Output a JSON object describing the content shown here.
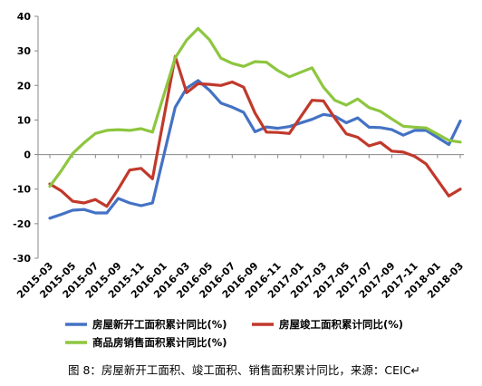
{
  "chart_data": {
    "type": "line",
    "y_ticks": [
      "40",
      "30",
      "20",
      "10",
      "0",
      "-10",
      "-20",
      "-30"
    ],
    "ylim": [
      -30,
      40
    ],
    "x_tick_labels": [
      "2015-03",
      "2015-05",
      "2015-07",
      "2015-09",
      "2015-11",
      "2016-01",
      "2016-03",
      "2016-05",
      "2016-07",
      "2016-09",
      "2016-11",
      "2017-01",
      "2017-03",
      "2017-05",
      "2017-07",
      "2017-09",
      "2017-11",
      "2018-01",
      "2018-03"
    ],
    "x": [
      "2015-03",
      "2015-04",
      "2015-05",
      "2015-06",
      "2015-07",
      "2015-08",
      "2015-09",
      "2015-10",
      "2015-11",
      "2015-12",
      "2016-01",
      "2016-02",
      "2016-03",
      "2016-04",
      "2016-05",
      "2016-06",
      "2016-07",
      "2016-08",
      "2016-09",
      "2016-10",
      "2016-11",
      "2016-12",
      "2017-01",
      "2017-02",
      "2017-03",
      "2017-04",
      "2017-05",
      "2017-06",
      "2017-07",
      "2017-08",
      "2017-09",
      "2017-10",
      "2017-11",
      "2017-12",
      "2018-01",
      "2018-02",
      "2018-03"
    ],
    "series": [
      {
        "name": "房屋新开工面积累计同比(%)",
        "color": "#4472C4",
        "values": [
          -18.4,
          -17.3,
          -16.1,
          -15.9,
          -16.9,
          -16.9,
          -12.7,
          -14.0,
          -14.8,
          -14.0,
          null,
          13.7,
          19.2,
          21.4,
          18.6,
          14.9,
          13.7,
          12.2,
          6.6,
          8.0,
          7.6,
          8.1,
          null,
          10.2,
          11.6,
          11.1,
          9.2,
          10.6,
          7.9,
          7.8,
          7.2,
          5.6,
          7.0,
          7.0,
          null,
          2.9,
          9.7
        ]
      },
      {
        "name": "房屋竣工面积累计同比(%)",
        "color": "#C0392B",
        "values": [
          -8.5,
          -10.5,
          -13.5,
          -14.0,
          -13.0,
          -15.0,
          -10.0,
          -4.5,
          -4.0,
          -7.0,
          null,
          28.4,
          17.9,
          20.5,
          20.3,
          20.0,
          21.0,
          19.5,
          12.0,
          6.5,
          6.4,
          6.1,
          null,
          15.7,
          15.5,
          10.5,
          6.0,
          5.0,
          2.5,
          3.5,
          1.0,
          0.7,
          -0.5,
          -2.7,
          null,
          -12.0,
          -10.0
        ]
      },
      {
        "name": "商品房销售面积累计同比(%)",
        "color": "#8DC63F",
        "values": [
          -9.2,
          -4.7,
          0.3,
          3.4,
          6.1,
          7.0,
          7.2,
          7.0,
          7.5,
          6.5,
          null,
          28.0,
          33.1,
          36.5,
          33.2,
          27.9,
          26.4,
          25.5,
          26.9,
          26.7,
          24.3,
          22.5,
          null,
          25.1,
          19.5,
          15.7,
          14.3,
          16.1,
          13.6,
          12.5,
          10.3,
          8.2,
          7.9,
          7.7,
          null,
          4.1,
          3.6
        ]
      }
    ],
    "legend_position": "bottom",
    "grid": false
  },
  "caption": "图 8：房屋新开工面积、竣工面积、销售面积累计同比，来源：CEIC↵"
}
